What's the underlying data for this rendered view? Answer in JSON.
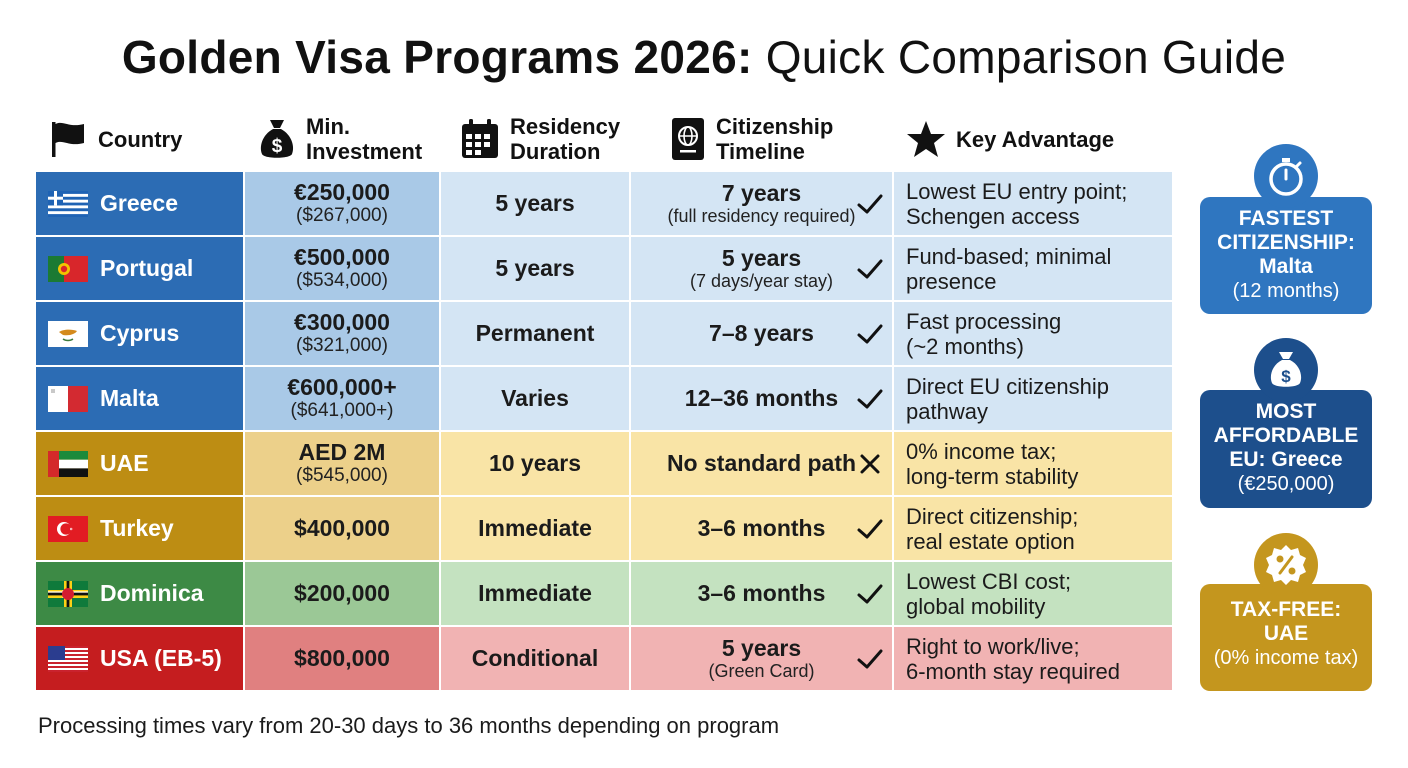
{
  "title": {
    "bold": "Golden Visa Programs 2026:",
    "light": "Quick Comparison Guide"
  },
  "headers": {
    "country": "Country",
    "investment_line1": "Min.",
    "investment_line2": "Investment",
    "residency_line1": "Residency",
    "residency_line2": "Duration",
    "citizenship_line1": "Citizenship",
    "citizenship_line2": "Timeline",
    "advantage": "Key Advantage"
  },
  "colors": {
    "blue_dark": "#2c6cb4",
    "blue_mid": "#a9c9e7",
    "blue_light": "#d4e5f4",
    "gold_dark": "#bd8d13",
    "gold_mid": "#ecd08a",
    "gold_light": "#f9e4a6",
    "green_dark": "#3d8a45",
    "green_mid": "#9bc896",
    "green_light": "#c4e2c0",
    "red_dark": "#c51d1f",
    "red_mid": "#e08080",
    "red_light": "#f1b3b3"
  },
  "rows": [
    {
      "country": "Greece",
      "flag": "greece-flag-icon",
      "theme": "blue",
      "inv_main": "€250,000",
      "inv_sub": "($267,000)",
      "residency": "5 years",
      "cit_main": "7 years",
      "cit_sub": "(full residency required)",
      "status": "check",
      "adv_line1": "Lowest EU entry point;",
      "adv_line2": "Schengen access"
    },
    {
      "country": "Portugal",
      "flag": "portugal-flag-icon",
      "theme": "blue",
      "inv_main": "€500,000",
      "inv_sub": "($534,000)",
      "residency": "5 years",
      "cit_main": "5 years",
      "cit_sub": "(7 days/year stay)",
      "status": "check",
      "adv_line1": "Fund-based; minimal",
      "adv_line2": "presence"
    },
    {
      "country": "Cyprus",
      "flag": "cyprus-flag-icon",
      "theme": "blue",
      "inv_main": "€300,000",
      "inv_sub": "($321,000)",
      "residency": "Permanent",
      "cit_main": "7–8 years",
      "cit_sub": "",
      "status": "check",
      "adv_line1": "Fast processing",
      "adv_line2": "(~2 months)"
    },
    {
      "country": "Malta",
      "flag": "malta-flag-icon",
      "theme": "blue",
      "inv_main": "€600,000+",
      "inv_sub": "($641,000+)",
      "residency": "Varies",
      "cit_main": "12–36 months",
      "cit_sub": "",
      "status": "check",
      "adv_line1": "Direct EU citizenship",
      "adv_line2": "pathway"
    },
    {
      "country": "UAE",
      "flag": "uae-flag-icon",
      "theme": "gold",
      "inv_main": "AED 2M",
      "inv_sub": "($545,000)",
      "residency": "10 years",
      "cit_main": "No standard path",
      "cit_sub": "",
      "status": "cross",
      "adv_line1": "0% income tax;",
      "adv_line2": "long-term stability"
    },
    {
      "country": "Turkey",
      "flag": "turkey-flag-icon",
      "theme": "gold",
      "inv_main": "$400,000",
      "inv_sub": "",
      "residency": "Immediate",
      "cit_main": "3–6 months",
      "cit_sub": "",
      "status": "check",
      "adv_line1": "Direct citizenship;",
      "adv_line2": "real estate option"
    },
    {
      "country": "Dominica",
      "flag": "dominica-flag-icon",
      "theme": "green",
      "inv_main": "$200,000",
      "inv_sub": "",
      "residency": "Immediate",
      "cit_main": "3–6 months",
      "cit_sub": "",
      "status": "check",
      "adv_line1": "Lowest CBI cost;",
      "adv_line2": "global mobility"
    },
    {
      "country": "USA (EB-5)",
      "flag": "usa-flag-icon",
      "theme": "red",
      "inv_main": "$800,000",
      "inv_sub": "",
      "residency": "Conditional",
      "cit_main": "5 years",
      "cit_sub": "(Green Card)",
      "status": "check",
      "adv_line1": "Right to work/live;",
      "adv_line2": "6-month stay required"
    }
  ],
  "callouts": [
    {
      "icon": "stopwatch-icon",
      "title_lines": [
        "FASTEST",
        "CITIZENSHIP:",
        "Malta"
      ],
      "sub": "(12 months)",
      "color": "#2f76c0",
      "title_color": "#ffffff"
    },
    {
      "icon": "money-bag-icon",
      "title_lines": [
        "MOST",
        "AFFORDABLE",
        "EU: Greece"
      ],
      "sub": "(€250,000)",
      "color": "#1d4f8c",
      "title_color": "#ffffff"
    },
    {
      "icon": "percent-badge-icon",
      "title_lines": [
        "TAX-FREE:",
        "UAE"
      ],
      "sub": "(0% income tax)",
      "color": "#c4961e",
      "title_color": "#ffffff"
    }
  ],
  "footer": "Processing times vary from 20-30 days to 36 months depending on program"
}
